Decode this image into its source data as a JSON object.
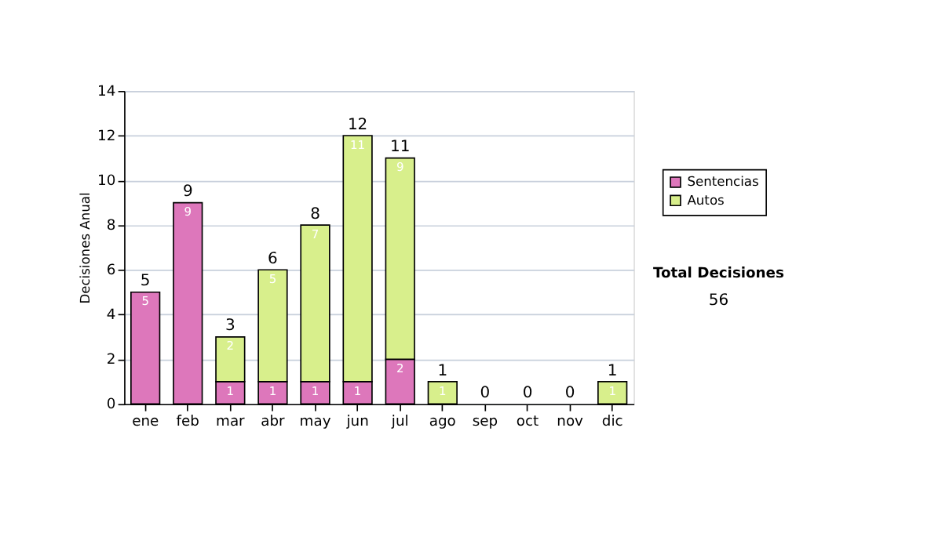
{
  "chart_data": {
    "type": "bar",
    "stacked": true,
    "ylabel": "Decisiones Anual",
    "categories": [
      "ene",
      "feb",
      "mar",
      "abr",
      "may",
      "jun",
      "jul",
      "ago",
      "sep",
      "oct",
      "nov",
      "dic"
    ],
    "series": [
      {
        "name": "Sentencias",
        "color": "#dd77bb",
        "values": [
          5,
          9,
          1,
          1,
          1,
          1,
          2,
          0,
          0,
          0,
          0,
          0
        ],
        "value_labels": [
          "5",
          "9",
          "1",
          "1",
          "1",
          "1",
          "2",
          null,
          null,
          null,
          null,
          null
        ]
      },
      {
        "name": "Autos",
        "color": "#d8ef8c",
        "values": [
          0,
          0,
          2,
          5,
          7,
          11,
          9,
          1,
          0,
          0,
          0,
          1
        ],
        "value_labels": [
          null,
          null,
          "2",
          "5",
          "7",
          "11",
          "9",
          "1",
          null,
          null,
          null,
          "1"
        ]
      }
    ],
    "totals": [
      "5",
      "9",
      "3",
      "6",
      "8",
      "12",
      "11",
      "1",
      "0",
      "0",
      "0",
      "1"
    ],
    "ylim": [
      0,
      14
    ],
    "yticks": [
      0,
      2,
      4,
      6,
      8,
      10,
      12,
      14
    ],
    "grid": "y",
    "legend": "right",
    "annotations": [
      "Total Decisiones",
      "56"
    ]
  }
}
